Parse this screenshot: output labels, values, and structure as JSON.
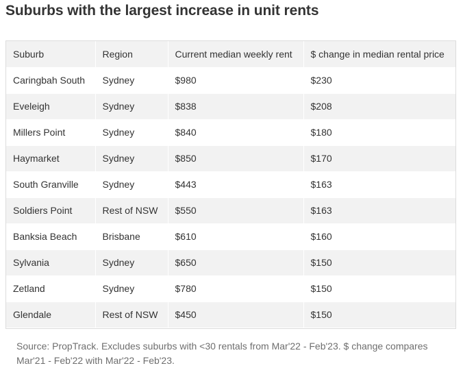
{
  "title": "Suburbs with the largest increase in unit rents",
  "table": {
    "headers": [
      "Suburb",
      "Region",
      "Current median weekly rent",
      "$ change in median rental price"
    ],
    "rows": [
      [
        "Caringbah South",
        "Sydney",
        "$980",
        "$230"
      ],
      [
        "Eveleigh",
        "Sydney",
        "$838",
        "$208"
      ],
      [
        "Millers Point",
        "Sydney",
        "$840",
        "$180"
      ],
      [
        "Haymarket",
        "Sydney",
        "$850",
        "$170"
      ],
      [
        "South Granville",
        "Sydney",
        "$443",
        "$163"
      ],
      [
        "Soldiers Point",
        "Rest of NSW",
        "$550",
        "$163"
      ],
      [
        "Banksia Beach",
        "Brisbane",
        "$610",
        "$160"
      ],
      [
        "Sylvania",
        "Sydney",
        "$650",
        "$150"
      ],
      [
        "Zetland",
        "Sydney",
        "$780",
        "$150"
      ],
      [
        "Glendale",
        "Rest of NSW",
        "$450",
        "$150"
      ]
    ]
  },
  "source": "Source: PropTrack. Excludes suburbs with <30 rentals from Mar'22 - Feb'23. $ change compares Mar'21 - Feb'22 with Mar'22 - Feb'23.",
  "colors": {
    "title": "#333333",
    "stripe": "#f2f2f2",
    "border": "#dcdcdc",
    "source_text": "#6e6e6e"
  }
}
